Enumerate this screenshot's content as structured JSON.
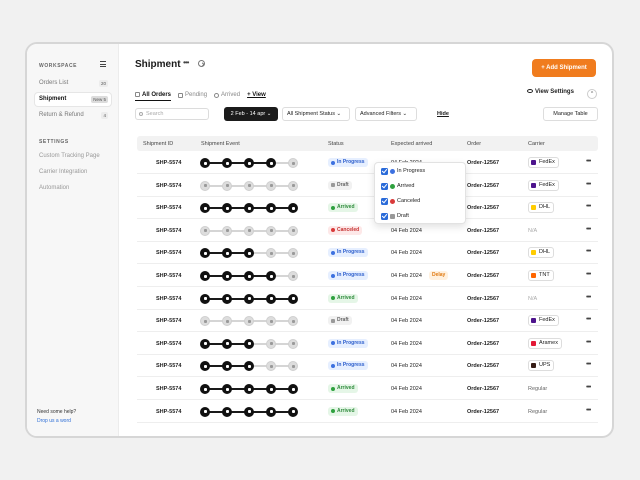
{
  "sidebar": {
    "heading": "WORKSPACE",
    "items": [
      {
        "label": "Orders List",
        "count": "20"
      },
      {
        "label": "Shipment",
        "count": "New 5"
      },
      {
        "label": "Return & Refund",
        "count": "4"
      }
    ],
    "settings_heading": "SETTINGS",
    "settings": [
      "Custom Tracking Page",
      "Carrier Integration",
      "Automation"
    ],
    "help": "Need some help?",
    "drop": "Drop us a word"
  },
  "header": {
    "title": "Shipment",
    "more": "•••",
    "add_button": "+ Add Shipment",
    "view_settings": "View Settings"
  },
  "tabs": [
    "All Orders",
    "Pending",
    "Arrived",
    "+ View"
  ],
  "toolbar": {
    "search_placeholder": "Search",
    "date_range": "2 Feb - 14 apr ⌄",
    "status_filter": "All Shipment Status ⌄",
    "advanced_filters": "Advanced Filters ⌄",
    "hide": "Hide",
    "manage_table": "Manage Table"
  },
  "table": {
    "columns": [
      "Shipment ID",
      "Shipment Event",
      "Status",
      "Expected arrived",
      "Order",
      "Carrier"
    ],
    "rows": [
      {
        "id": "SHP-5574",
        "progress": 4,
        "status": "In Progress",
        "status_class": "progress",
        "date": "04 Feb 2024",
        "delay": "",
        "order": "Order-12567",
        "carrier": "FedEx",
        "carrier_color": "#4d148c"
      },
      {
        "id": "SHP-5574",
        "progress": 0,
        "status": "Draft",
        "status_class": "draft",
        "date": "04 Feb 2024",
        "delay": "",
        "order": "Order-12567",
        "carrier": "FedEx",
        "carrier_color": "#4d148c"
      },
      {
        "id": "SHP-5574",
        "progress": 5,
        "status": "Arrived",
        "status_class": "arrived",
        "date": "04 Feb 2024",
        "delay": "",
        "order": "Order-12567",
        "carrier": "DHL",
        "carrier_color": "#ffcc00"
      },
      {
        "id": "SHP-5574",
        "progress": 0,
        "status": "Canceled",
        "status_class": "canceled",
        "date": "04 Feb 2024",
        "delay": "",
        "order": "Order-12567",
        "carrier": "N/A",
        "carrier_color": ""
      },
      {
        "id": "SHP-5574",
        "progress": 3,
        "status": "In Progress",
        "status_class": "progress",
        "date": "04 Feb 2024",
        "delay": "",
        "order": "Order-12567",
        "carrier": "DHL",
        "carrier_color": "#ffcc00"
      },
      {
        "id": "SHP-5574",
        "progress": 4,
        "status": "In Progress",
        "status_class": "progress",
        "date": "04 Feb 2024",
        "delay": "Delay",
        "order": "Order-12567",
        "carrier": "TNT",
        "carrier_color": "#ff6600"
      },
      {
        "id": "SHP-5574",
        "progress": 5,
        "status": "Arrived",
        "status_class": "arrived",
        "date": "04 Feb 2024",
        "delay": "",
        "order": "Order-12567",
        "carrier": "N/A",
        "carrier_color": ""
      },
      {
        "id": "SHP-5574",
        "progress": 0,
        "status": "Draft",
        "status_class": "draft",
        "date": "04 Feb 2024",
        "delay": "",
        "order": "Order-12567",
        "carrier": "FedEx",
        "carrier_color": "#4d148c"
      },
      {
        "id": "SHP-5574",
        "progress": 3,
        "status": "In Progress",
        "status_class": "progress",
        "date": "04 Feb 2024",
        "delay": "",
        "order": "Order-12567",
        "carrier": "Aramex",
        "carrier_color": "#e31937"
      },
      {
        "id": "SHP-5574",
        "progress": 3,
        "status": "In Progress",
        "status_class": "progress",
        "date": "04 Feb 2024",
        "delay": "",
        "order": "Order-12567",
        "carrier": "UPS",
        "carrier_color": "#351c15"
      },
      {
        "id": "SHP-5574",
        "progress": 5,
        "status": "Arrived",
        "status_class": "arrived",
        "date": "04 Feb 2024",
        "delay": "",
        "order": "Order-12567",
        "carrier": "Regular",
        "carrier_color": ""
      },
      {
        "id": "SHP-5574",
        "progress": 5,
        "status": "Arrived",
        "status_class": "arrived",
        "date": "04 Feb 2024",
        "delay": "",
        "order": "Order-12567",
        "carrier": "Regular",
        "carrier_color": ""
      }
    ]
  },
  "status_dropdown": {
    "options": [
      {
        "label": "In Progress",
        "color": "#3d71e0"
      },
      {
        "label": "Arrived",
        "color": "#2fa13f"
      },
      {
        "label": "Canceled",
        "color": "#d93a3a"
      },
      {
        "label": "Draft",
        "color": "#999999"
      }
    ]
  }
}
